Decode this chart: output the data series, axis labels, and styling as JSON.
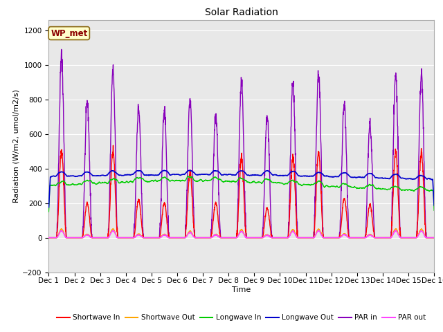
{
  "title": "Solar Radiation",
  "xlabel": "Time",
  "ylabel": "Radiation (W/m2, umol/m2/s)",
  "ylim": [
    -200,
    1260
  ],
  "yticks": [
    -200,
    0,
    200,
    400,
    600,
    800,
    1000,
    1200
  ],
  "n_days": 15,
  "points_per_day": 144,
  "plot_bg_color": "#e8e8e8",
  "fig_bg_color": "#ffffff",
  "legend_label": "WP_met",
  "series": {
    "shortwave_in": {
      "color": "#ff0000",
      "label": "Shortwave In",
      "lw": 1.0
    },
    "shortwave_out": {
      "color": "#ffa500",
      "label": "Shortwave Out",
      "lw": 1.0
    },
    "longwave_in": {
      "color": "#00cc00",
      "label": "Longwave In",
      "lw": 1.0
    },
    "longwave_out": {
      "color": "#0000cc",
      "label": "Longwave Out",
      "lw": 1.2
    },
    "par_in": {
      "color": "#8800bb",
      "label": "PAR in",
      "lw": 1.0
    },
    "par_out": {
      "color": "#ff44ff",
      "label": "PAR out",
      "lw": 1.0
    }
  },
  "par_peaks": [
    1050,
    780,
    970,
    750,
    740,
    800,
    710,
    900,
    700,
    900,
    950,
    770,
    660,
    940,
    950
  ],
  "sw_peaks": [
    500,
    200,
    500,
    220,
    200,
    380,
    200,
    460,
    170,
    460,
    490,
    230,
    190,
    500,
    490
  ],
  "gridcolor": "#ffffff",
  "tick_label_size": 7.5,
  "title_fontsize": 10,
  "ylabel_fontsize": 8,
  "xlabel_fontsize": 8
}
